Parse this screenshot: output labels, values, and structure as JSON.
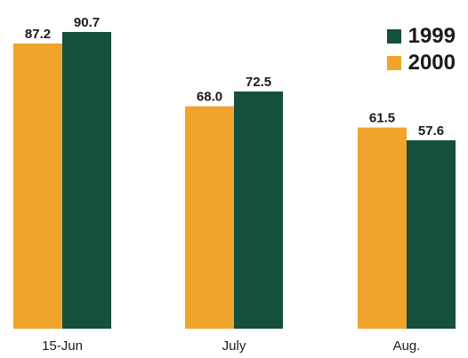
{
  "chart_data": {
    "type": "bar",
    "categories": [
      "15-Jun",
      "July",
      "Aug."
    ],
    "series": [
      {
        "name": "2000",
        "values": [
          87.2,
          68.0,
          61.5
        ],
        "color": "#f0a42c"
      },
      {
        "name": "1999",
        "values": [
          90.7,
          72.5,
          57.6
        ],
        "color": "#14503c"
      }
    ],
    "data_labels": [
      [
        "87.2",
        "68.0",
        "61.5"
      ],
      [
        "90.7",
        "72.5",
        "57.6"
      ]
    ],
    "legend": {
      "placement": "top-right",
      "order": [
        "1999",
        "2000"
      ]
    },
    "ylim": [
      0,
      90.7
    ],
    "grid": false,
    "title": "",
    "xlabel": "",
    "ylabel": ""
  }
}
